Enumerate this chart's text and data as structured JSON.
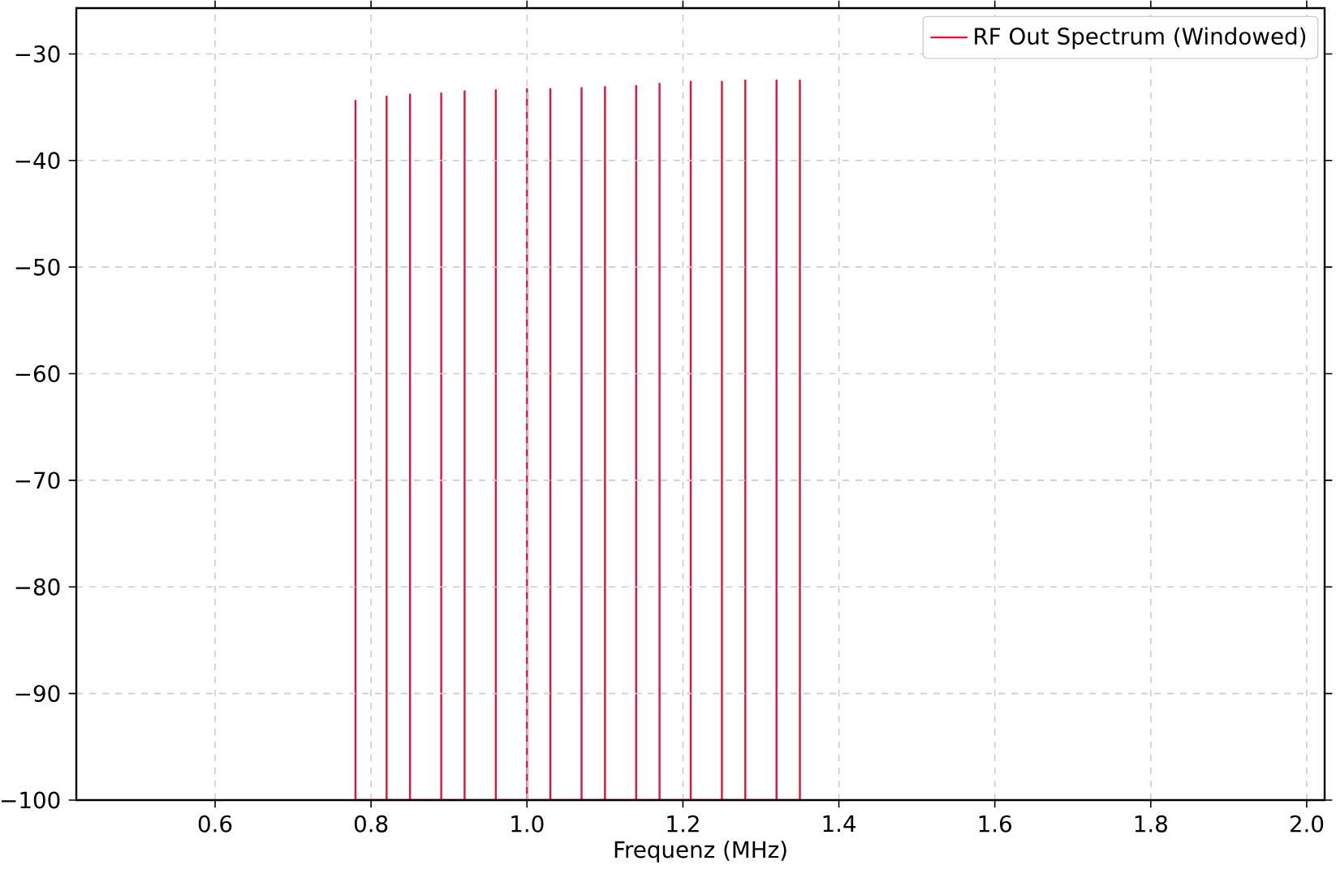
{
  "chart_data": {
    "type": "line",
    "xlabel": "Frequenz (MHz)",
    "xlim": [
      0.422,
      2.023
    ],
    "ylim": [
      -100,
      -25.7
    ],
    "xticks": [
      0.6,
      0.8,
      {
        "value": 1.0,
        "label": "1.0"
      },
      1.2,
      1.4,
      1.6,
      1.8,
      {
        "value": 2.0,
        "label": "2.0"
      }
    ],
    "yticks": [
      {
        "value": -100,
        "label": "−100"
      },
      {
        "value": -90,
        "label": "−90"
      },
      {
        "value": -80,
        "label": "−80"
      },
      {
        "value": -70,
        "label": "−70"
      },
      {
        "value": -60,
        "label": "−60"
      },
      {
        "value": -50,
        "label": "−50"
      },
      {
        "value": -40,
        "label": "−40"
      },
      {
        "value": -30,
        "label": "−30"
      }
    ],
    "grid": true,
    "legend": "top right",
    "line_style": "solid",
    "marker": "none",
    "series": [
      {
        "name": "RF Out Spectrum (Windowed)",
        "color": "#dc143c",
        "x": [
          0.78,
          0.78,
          0.78,
          0.82,
          0.82,
          0.82,
          0.85,
          0.85,
          0.85,
          0.89,
          0.89,
          0.89,
          0.92,
          0.92,
          0.92,
          0.96,
          0.96,
          0.96,
          1.0,
          1.0,
          1.0,
          1.03,
          1.03,
          1.03,
          1.07,
          1.07,
          1.07,
          1.1,
          1.1,
          1.1,
          1.14,
          1.14,
          1.14,
          1.17,
          1.17,
          1.17,
          1.21,
          1.21,
          1.21,
          1.25,
          1.25,
          1.25,
          1.28,
          1.28,
          1.28,
          1.32,
          1.32,
          1.32,
          1.35,
          1.35,
          1.35
        ],
        "values": [
          -100,
          -34.4,
          -100,
          -100,
          -34.0,
          -100,
          -100,
          -33.8,
          -100,
          -100,
          -33.7,
          -100,
          -100,
          -33.5,
          -100,
          -100,
          -33.4,
          -100,
          -100,
          -33.3,
          -100,
          -100,
          -33.3,
          -100,
          -100,
          -33.2,
          -100,
          -100,
          -33.1,
          -100,
          -100,
          -33.0,
          -100,
          -100,
          -32.8,
          -100,
          -100,
          -32.6,
          -100,
          -100,
          -32.6,
          -100,
          -100,
          -32.5,
          -100,
          -100,
          -32.5,
          -100,
          -100,
          -32.5,
          -100
        ]
      }
    ]
  }
}
